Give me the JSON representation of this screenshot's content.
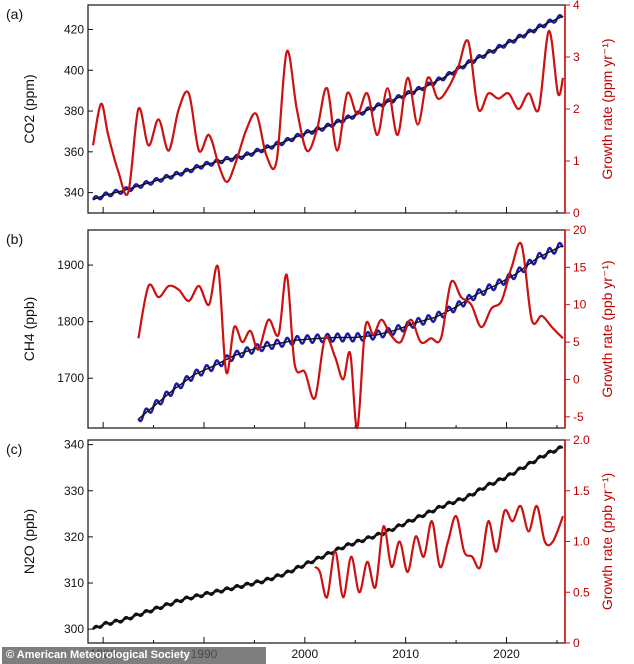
{
  "chart_data": [
    {
      "type": "line",
      "panel_label": "(a)",
      "ylabel_left": "CO2 (ppm)",
      "ylabel_right": "Growth rate (ppm yr⁻¹)",
      "xlim": [
        1978.5,
        2025.8
      ],
      "ylim_left": [
        330,
        432
      ],
      "ylim_right": [
        0,
        4
      ],
      "yticks_left": [
        340,
        360,
        380,
        400,
        420
      ],
      "yticks_right": [
        0,
        1,
        2,
        3,
        4
      ],
      "colors": {
        "concentration": "#1a1aa6",
        "trend": "#111111",
        "growth": "#cc1111"
      },
      "series": [
        {
          "role": "concentration",
          "axis": "left",
          "seasonal_amplitude": 1.2,
          "x": [
            1979,
            1980,
            1982,
            1984,
            1986,
            1988,
            1990,
            1992,
            1994,
            1996,
            1998,
            2000,
            2002,
            2004,
            2006,
            2008,
            2010,
            2012,
            2014,
            2016,
            2018,
            2020,
            2022,
            2024,
            2025.6
          ],
          "y": [
            336.5,
            338.5,
            341,
            344,
            347,
            350,
            353.5,
            356,
            358,
            361.5,
            365,
            369,
            372,
            376,
            380,
            384,
            388,
            392,
            397,
            403,
            408,
            413,
            418,
            423,
            426.5
          ]
        },
        {
          "role": "growth",
          "axis": "right",
          "x": [
            1979,
            1979.8,
            1980.5,
            1981.5,
            1982.5,
            1983.5,
            1984.5,
            1985.5,
            1986.5,
            1987.5,
            1988.5,
            1989.5,
            1990.5,
            1991.5,
            1992.3,
            1993.2,
            1994.2,
            1995.2,
            1996.2,
            1997.2,
            1998.2,
            1999.2,
            2000.2,
            2001.2,
            2002.2,
            2003.2,
            2004.2,
            2005.2,
            2006.2,
            2007.2,
            2008.2,
            2009.2,
            2010.2,
            2011.2,
            2012.2,
            2013.2,
            2014.2,
            2015.2,
            2016.2,
            2017.2,
            2018.2,
            2019.2,
            2020.2,
            2021.2,
            2022.2,
            2023.2,
            2024.2,
            2025.1,
            2025.6
          ],
          "y": [
            1.3,
            2.1,
            1.5,
            0.8,
            0.4,
            2.0,
            1.3,
            1.8,
            1.2,
            2.0,
            2.3,
            1.2,
            1.5,
            0.9,
            0.6,
            1.0,
            1.6,
            1.9,
            1.1,
            1.0,
            3.1,
            2.0,
            1.2,
            1.6,
            2.4,
            1.2,
            2.3,
            1.9,
            2.3,
            1.5,
            2.4,
            1.5,
            2.6,
            1.7,
            2.6,
            2.2,
            2.4,
            2.8,
            3.3,
            2.0,
            2.3,
            2.2,
            2.3,
            2.0,
            2.3,
            2.0,
            3.5,
            2.3,
            2.6
          ]
        }
      ]
    },
    {
      "type": "line",
      "panel_label": "(b)",
      "ylabel_left": "CH4 (ppb)",
      "ylabel_right": "Growth rate (ppb yr⁻¹)",
      "xlim": [
        1978.5,
        2025.8
      ],
      "ylim_left": [
        1612,
        1962
      ],
      "ylim_right": [
        -6.5,
        20
      ],
      "yticks_left": [
        1700,
        1800,
        1900
      ],
      "yticks_right": [
        -5,
        0,
        5,
        10,
        15,
        20
      ],
      "colors": {
        "concentration": "#1a1aa6",
        "trend": "#111111",
        "growth": "#cc1111"
      },
      "series": [
        {
          "role": "concentration",
          "axis": "left",
          "seasonal_amplitude": 7,
          "x": [
            1983.5,
            1985,
            1987,
            1989,
            1991,
            1993,
            1995,
            1997,
            1999,
            2001,
            2003,
            2005,
            2007,
            2009,
            2011,
            2013,
            2015,
            2017,
            2019,
            2021,
            2023,
            2025.6
          ],
          "y": [
            1628,
            1650,
            1680,
            1706,
            1722,
            1740,
            1752,
            1760,
            1767,
            1770,
            1772,
            1772,
            1776,
            1785,
            1798,
            1808,
            1826,
            1848,
            1865,
            1885,
            1912,
            1935
          ]
        },
        {
          "role": "growth",
          "axis": "right",
          "x": [
            1983.5,
            1984.5,
            1985.5,
            1986.5,
            1987.5,
            1988.5,
            1989.5,
            1990.5,
            1991.4,
            1992.2,
            1993.0,
            1993.8,
            1994.6,
            1995.4,
            1996.4,
            1997.4,
            1998.2,
            1999.0,
            2000.0,
            2001.0,
            2002.0,
            2003.0,
            2003.8,
            2004.5,
            2005.2,
            2006.0,
            2006.8,
            2007.6,
            2008.5,
            2009.5,
            2010.5,
            2011.5,
            2012.5,
            2013.5,
            2014.5,
            2015.5,
            2016.5,
            2017.5,
            2018.5,
            2019.5,
            2020.5,
            2021.5,
            2022.5,
            2023.5,
            2024.5,
            2025.6
          ],
          "y": [
            5.5,
            12.5,
            11.0,
            12.5,
            12.0,
            10.5,
            12.5,
            10.0,
            15.0,
            1.0,
            7.0,
            5.0,
            6.5,
            4.0,
            8.0,
            6.0,
            14.0,
            2.0,
            1.0,
            -2.5,
            5.5,
            3.0,
            0.0,
            3.5,
            -6.5,
            7.0,
            6.0,
            8.0,
            6.0,
            5.0,
            8.0,
            5.0,
            5.5,
            5.5,
            13.0,
            11.0,
            10.0,
            7.0,
            9.5,
            10.5,
            15.0,
            18.0,
            8.0,
            8.5,
            7.0,
            5.5
          ]
        }
      ]
    },
    {
      "type": "line",
      "panel_label": "(c)",
      "ylabel_left": "N2O (ppb)",
      "ylabel_right": "Growth rate (ppb yr⁻¹)",
      "xlim": [
        1978.5,
        2025.8
      ],
      "ylim_left": [
        297,
        341
      ],
      "ylim_right": [
        0,
        2.0
      ],
      "yticks_left": [
        300,
        310,
        320,
        330,
        340
      ],
      "yticks_right": [
        0,
        0.5,
        1.0,
        1.5,
        2.0
      ],
      "xticks": [
        1980,
        1990,
        2000,
        2010,
        2020
      ],
      "colors": {
        "concentration": "#1a1aa6",
        "trend": "#111111",
        "growth": "#cc1111"
      },
      "series": [
        {
          "role": "trend",
          "axis": "left",
          "seasonal_amplitude": 0.4,
          "x": [
            1979,
            1980,
            1982,
            1984,
            1986,
            1988,
            1990,
            1992,
            1994,
            1996,
            1998,
            2000,
            2002,
            2004,
            2006,
            2008,
            2010,
            2012,
            2014,
            2016,
            2018,
            2020,
            2022,
            2024,
            2025.6
          ],
          "y": [
            300,
            301,
            302,
            303.5,
            305,
            306.5,
            307.5,
            308.5,
            309.5,
            310.5,
            312,
            314,
            316,
            318,
            319.5,
            321,
            323,
            325,
            327,
            328.5,
            331,
            333,
            335.5,
            338,
            339.5
          ]
        },
        {
          "role": "growth",
          "axis": "right",
          "x": [
            2001,
            2001.5,
            2002.2,
            2003,
            2003.8,
            2004.6,
            2005.4,
            2006.2,
            2007.0,
            2007.8,
            2008.6,
            2009.4,
            2010.2,
            2011.0,
            2011.8,
            2012.6,
            2013.4,
            2014.2,
            2015.0,
            2015.8,
            2016.6,
            2017.4,
            2018.2,
            2019.0,
            2019.8,
            2020.6,
            2021.4,
            2022.2,
            2023.0,
            2023.8,
            2024.6,
            2025.6
          ],
          "y": [
            0.75,
            0.7,
            0.45,
            0.9,
            0.45,
            0.85,
            0.5,
            0.8,
            0.55,
            1.15,
            0.75,
            1.0,
            0.7,
            1.05,
            0.85,
            1.2,
            0.75,
            1.0,
            1.25,
            0.9,
            0.85,
            0.75,
            1.2,
            0.9,
            1.3,
            1.2,
            1.35,
            1.1,
            1.35,
            1.0,
            1.0,
            1.25
          ]
        }
      ]
    }
  ],
  "credit": "© American Meteorological Society"
}
